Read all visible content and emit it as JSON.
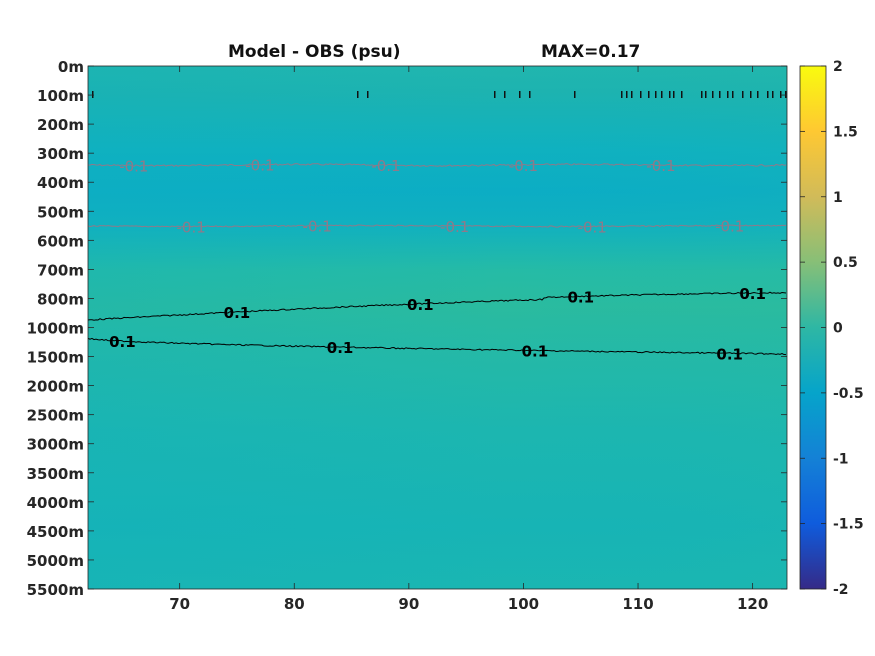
{
  "chart_data": {
    "type": "heatmap",
    "title": "Model - OBS (psu)",
    "annotation": "MAX=0.17",
    "x_ticks": [
      "70",
      "80",
      "90",
      "100",
      "110",
      "120"
    ],
    "x_tick_values": [
      70,
      80,
      90,
      100,
      110,
      120
    ],
    "xlim": [
      62,
      123
    ],
    "y_ticks": [
      "0m",
      "100m",
      "200m",
      "300m",
      "400m",
      "500m",
      "600m",
      "700m",
      "800m",
      "1000m",
      "1500m",
      "2000m",
      "2500m",
      "3000m",
      "3500m",
      "4000m",
      "4500m",
      "5000m",
      "5500m"
    ],
    "y_axis_direction": "depth increasing downward, non-uniform spacing",
    "colorbar": {
      "ticks": [
        "2",
        "1.5",
        "1",
        "0.5",
        "0",
        "-0.5",
        "-1",
        "-1.5",
        "-2"
      ],
      "tick_values": [
        2,
        1.5,
        1,
        0.5,
        0,
        -0.5,
        -1,
        -1.5,
        -2
      ],
      "range": [
        -2,
        2
      ],
      "colormap": "parula",
      "colors": [
        "#352a87",
        "#0f5cdd",
        "#1481d6",
        "#06a4ca",
        "#2eb7a4",
        "#87bf77",
        "#d1bb59",
        "#fec832",
        "#f9fb0e"
      ]
    },
    "contours": [
      {
        "level": -0.1,
        "label": "-0.1",
        "depth": "~350m",
        "color": "#8e7a8a",
        "label_x": [
          66,
          77,
          88,
          100,
          112
        ]
      },
      {
        "level": -0.1,
        "label": "-0.1",
        "depth": "~550m",
        "color": "#8e7a8a",
        "label_x": [
          71,
          82,
          94,
          106,
          118
        ]
      },
      {
        "level": 0.1,
        "label": "0.1",
        "depth": "~800-900m",
        "color": "#000000",
        "label_x": [
          75,
          91,
          105,
          120
        ]
      },
      {
        "level": 0.1,
        "label": "0.1",
        "depth": "~1200-1500m",
        "color": "#000000",
        "label_x": [
          65,
          84,
          101,
          118
        ]
      }
    ]
  }
}
